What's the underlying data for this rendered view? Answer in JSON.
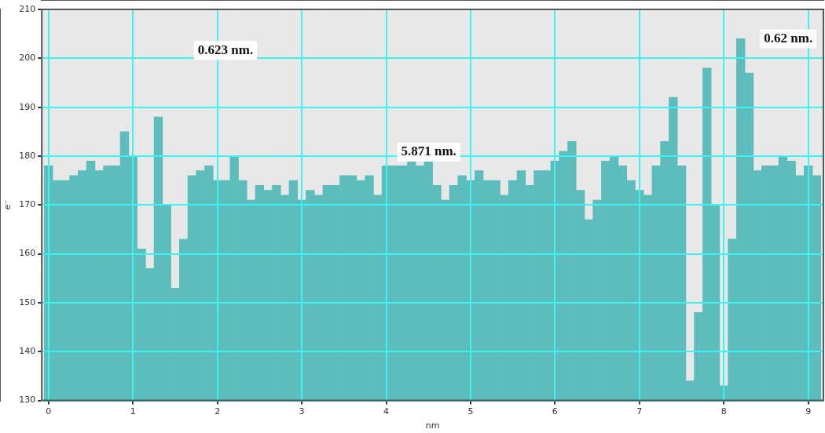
{
  "chart_data": {
    "type": "histogram",
    "xlabel": "nm",
    "ylabel": "e⁻",
    "color": "#5dbdbd",
    "bins": [
      -0.05,
      0.05,
      0.15,
      0.25,
      0.35,
      0.45,
      0.55,
      0.65,
      0.75,
      0.85,
      0.95,
      1.05,
      1.15,
      1.25,
      1.35,
      1.45,
      1.55,
      1.65,
      1.75,
      1.85,
      1.95,
      2.05,
      2.15,
      2.25,
      2.35,
      2.45,
      2.55,
      2.65,
      2.75,
      2.85,
      2.95,
      3.05,
      3.15,
      3.25,
      3.35,
      3.45,
      3.55,
      3.65,
      3.75,
      3.85,
      3.95,
      4.05,
      4.15,
      4.25,
      4.35,
      4.45,
      4.55,
      4.65,
      4.75,
      4.85,
      4.95,
      5.05,
      5.15,
      5.25,
      5.35,
      5.45,
      5.55,
      5.65,
      5.75,
      5.85,
      5.95,
      6.05,
      6.15,
      6.25,
      6.35,
      6.45,
      6.55,
      6.65,
      6.75,
      6.85,
      6.95,
      7.05,
      7.15,
      7.25,
      7.35,
      7.45,
      7.55,
      7.65,
      7.75,
      7.85,
      7.95,
      8.05,
      8.15,
      8.25,
      8.35,
      8.45,
      8.55,
      8.65,
      8.75,
      8.85,
      8.95,
      9.05,
      9.15
    ],
    "values": [
      178,
      175,
      175,
      176,
      177,
      179,
      177,
      178,
      178,
      185,
      180,
      161,
      157,
      188,
      170,
      153,
      163,
      176,
      177,
      178,
      175,
      175,
      180,
      175,
      171,
      174,
      173,
      174,
      172,
      175,
      171,
      173,
      172,
      174,
      174,
      176,
      176,
      175,
      176,
      172,
      178,
      178,
      178,
      179,
      178,
      179,
      174,
      171,
      174,
      176,
      175,
      177,
      175,
      175,
      172,
      175,
      177,
      174,
      177,
      177,
      179,
      181,
      183,
      173,
      167,
      171,
      179,
      180,
      178,
      175,
      173,
      172,
      178,
      183,
      192,
      178,
      134,
      148,
      198,
      170,
      133,
      163,
      204,
      197,
      177,
      178,
      178,
      180,
      179,
      176,
      178,
      176
    ],
    "xlim": [
      -0.08,
      9.18
    ],
    "ylim": [
      130,
      210
    ],
    "xticks": [
      0,
      1,
      2,
      3,
      4,
      5,
      6,
      7,
      8,
      9
    ],
    "yticks": [
      130,
      140,
      150,
      160,
      170,
      180,
      190,
      200,
      210
    ],
    "grid": true,
    "annotations": [
      "0.623 nm.",
      "5.871 nm.",
      "0.62 nm."
    ]
  }
}
